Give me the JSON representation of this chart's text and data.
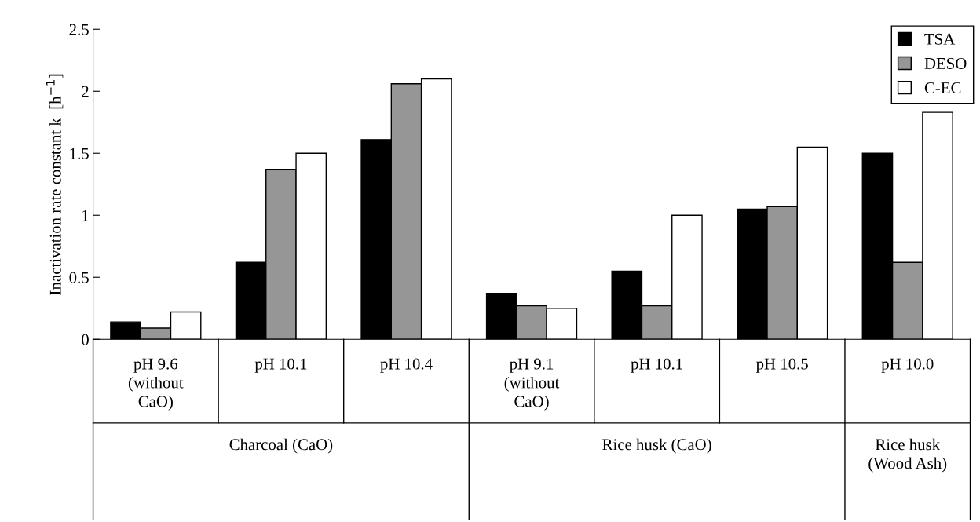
{
  "chart_data": {
    "type": "bar",
    "ylabel": "Inactivation rate constant k  [h$^{−1}$]",
    "categories": [
      "pH 9.6\n(without\nCaO)",
      "pH 10.1",
      "pH 10.4",
      "pH 9.1\n(without\nCaO)",
      "pH 10.1",
      "pH 10.5",
      "pH 10.0"
    ],
    "series": [
      {
        "name": "TSA",
        "color": "#000000",
        "values": [
          0.14,
          0.62,
          1.61,
          0.37,
          0.55,
          1.05,
          1.5
        ]
      },
      {
        "name": "DESO",
        "color": "#969696",
        "values": [
          0.09,
          1.37,
          2.06,
          0.27,
          0.27,
          1.07,
          0.62
        ]
      },
      {
        "name": "C-EC",
        "color": "#ffffff",
        "values": [
          0.22,
          1.5,
          2.1,
          0.25,
          1.0,
          1.55,
          1.83
        ]
      }
    ],
    "ylim": [
      0,
      2.5
    ],
    "yticks": [
      0,
      0.5,
      1,
      1.5,
      2,
      2.5
    ],
    "annotations": [
      "Charcoal (CaO)",
      "Rice husk (CaO)",
      "Rice husk\n(Wood Ash)"
    ],
    "legend": "top right",
    "grid": false
  }
}
